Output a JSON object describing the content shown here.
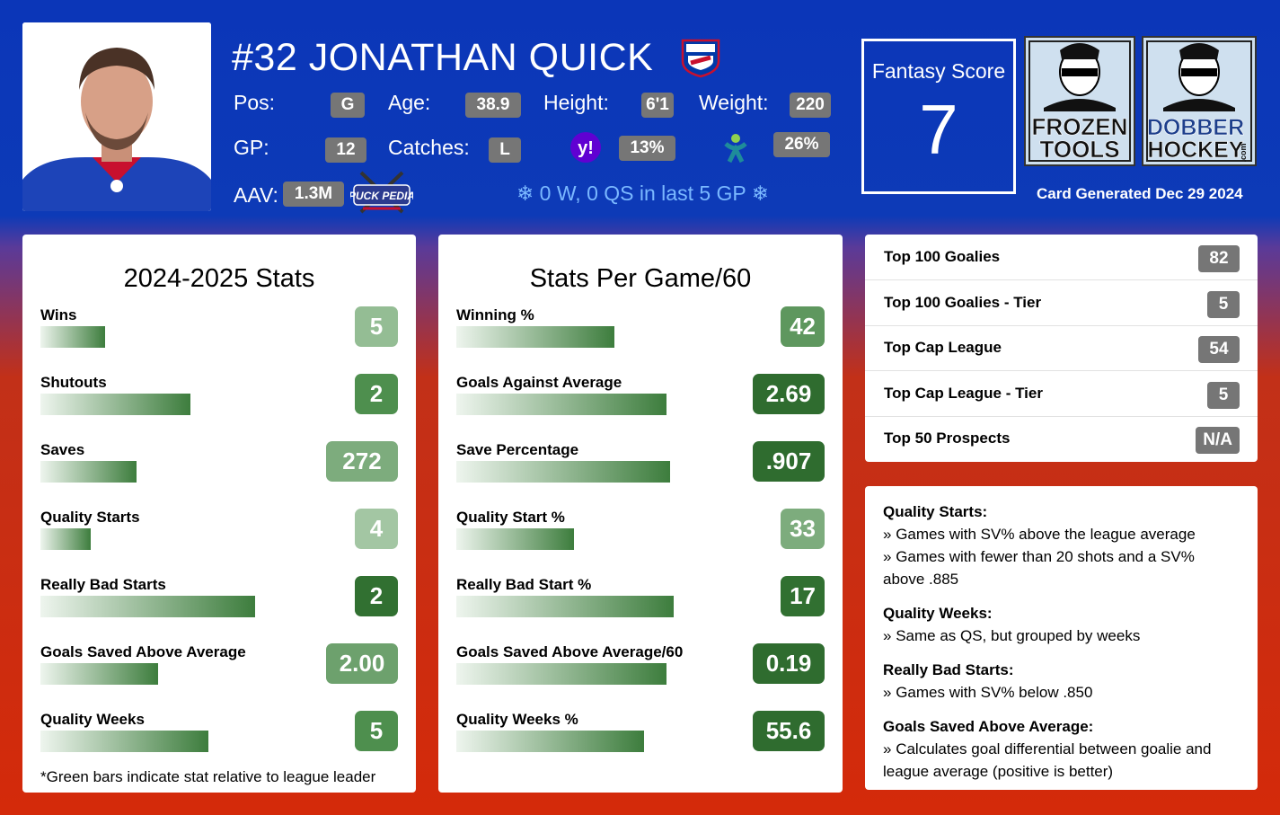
{
  "header": {
    "player_name": "#32 JONATHAN QUICK",
    "team_logo_text": "NEW YORK RANGERS",
    "stats": [
      {
        "label": "Pos:",
        "value": "G"
      },
      {
        "label": "Age:",
        "value": "38.9"
      },
      {
        "label": "Height:",
        "value": "6'1"
      },
      {
        "label": "Weight:",
        "value": "220"
      },
      {
        "label": "GP:",
        "value": "12"
      },
      {
        "label": "Catches:",
        "value": "L"
      }
    ],
    "yahoo_pct": "13%",
    "espn_pct": "26%",
    "aav_label": "AAV:",
    "aav_value": "1.3M",
    "puckpedia_text": "PUCK PEDIA",
    "streak_text": "0 W, 0 QS in last 5 GP",
    "fantasy_score_label": "Fantasy Score",
    "fantasy_score_value": "7",
    "frozen_tools_text": [
      "FROZEN",
      "TOOLS"
    ],
    "dobber_hockey_text": [
      "DOBBER",
      "HOCKEY"
    ],
    "dobber_sub": ".com",
    "card_generated": "Card Generated Dec 29 2024"
  },
  "season_stats": {
    "title": "2024-2025 Stats",
    "rows": [
      {
        "label": "Wins",
        "value": "5",
        "bar_fraction": 0.18,
        "badge_color": "#94bd94"
      },
      {
        "label": "Shutouts",
        "value": "2",
        "bar_fraction": 0.42,
        "badge_color": "#4e8f4e"
      },
      {
        "label": "Saves",
        "value": "272",
        "bar_fraction": 0.27,
        "badge_color": "#7dac7d"
      },
      {
        "label": "Quality Starts",
        "value": "4",
        "bar_fraction": 0.14,
        "badge_color": "#a3c6a3"
      },
      {
        "label": "Really Bad Starts",
        "value": "2",
        "bar_fraction": 0.6,
        "badge_color": "#317031"
      },
      {
        "label": "Goals Saved Above Average",
        "value": "2.00",
        "bar_fraction": 0.33,
        "badge_color": "#6da16d"
      },
      {
        "label": "Quality Weeks",
        "value": "5",
        "bar_fraction": 0.47,
        "badge_color": "#4e8f4e"
      }
    ],
    "footnote": "*Green bars indicate stat relative to league leader"
  },
  "per_game_stats": {
    "title": "Stats Per Game/60",
    "rows": [
      {
        "label": "Winning %",
        "value": "42",
        "bar_fraction": 0.43,
        "badge_color": "#5e975e"
      },
      {
        "label": "Goals Against Average",
        "value": "2.69",
        "bar_fraction": 0.57,
        "badge_color": "#2f6c2f"
      },
      {
        "label": "Save Percentage",
        "value": ".907",
        "bar_fraction": 0.58,
        "badge_color": "#2f6c2f"
      },
      {
        "label": "Quality Start %",
        "value": "33",
        "bar_fraction": 0.32,
        "badge_color": "#7dac7d"
      },
      {
        "label": "Really Bad Start %",
        "value": "17",
        "bar_fraction": 0.59,
        "badge_color": "#317031"
      },
      {
        "label": "Goals Saved Above Average/60",
        "value": "0.19",
        "bar_fraction": 0.57,
        "badge_color": "#2f6c2f"
      },
      {
        "label": "Quality Weeks %",
        "value": "55.6",
        "bar_fraction": 0.51,
        "badge_color": "#2f6c2f"
      }
    ]
  },
  "rankings": [
    {
      "label": "Top 100 Goalies",
      "value": "82"
    },
    {
      "label": "Top 100 Goalies - Tier",
      "value": "5"
    },
    {
      "label": "Top Cap League",
      "value": "54"
    },
    {
      "label": "Top Cap League - Tier",
      "value": "5"
    },
    {
      "label": "Top 50 Prospects",
      "value": "N/A"
    }
  ],
  "legend": [
    {
      "heading": "Quality Starts:",
      "items": [
        "Games with SV% above the league average",
        "Games with fewer than 20 shots and a SV% above .885"
      ]
    },
    {
      "heading": "Quality Weeks:",
      "items": [
        "Same as QS, but grouped by weeks"
      ]
    },
    {
      "heading": "Really Bad Starts:",
      "items": [
        "Games with SV% below .850"
      ]
    },
    {
      "heading": "Goals Saved Above Average:",
      "items": [
        "Calculates goal differential between goalie and league average (positive is better)"
      ]
    }
  ],
  "colors": {
    "header_blue": "#0b36b8",
    "bottom_red": "#d42a0a",
    "pill_gray": "#767676"
  }
}
